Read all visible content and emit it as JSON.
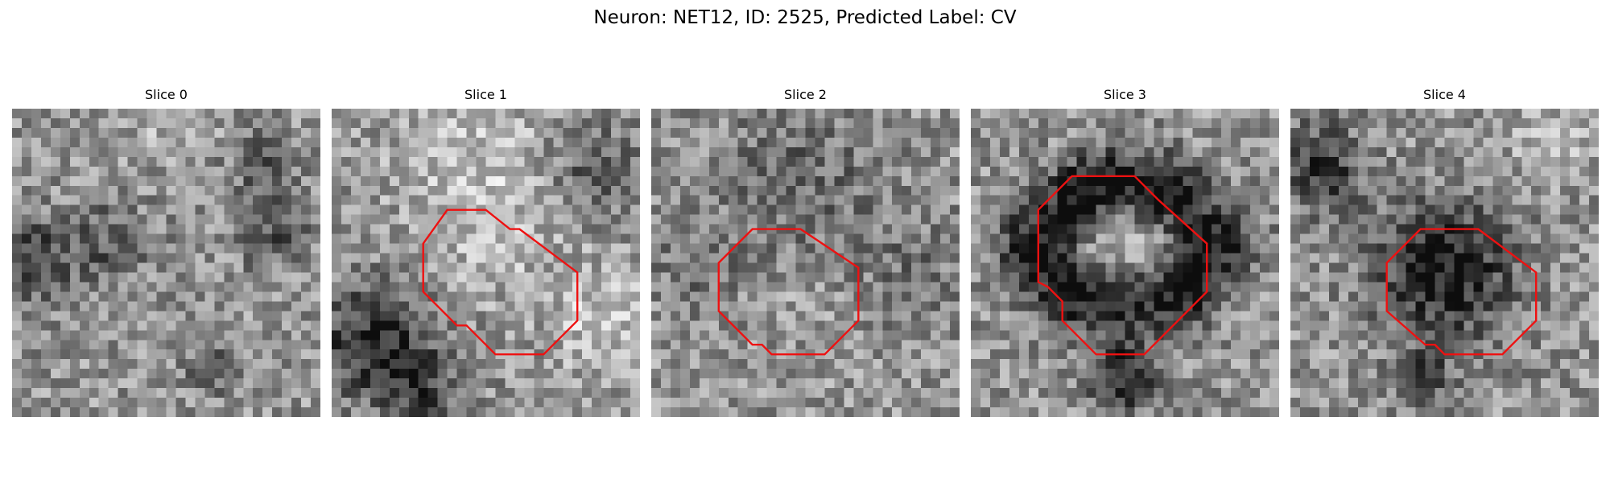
{
  "title": "Neuron: NET12, ID: 2525, Predicted Label: CV",
  "outline_color": "#ee1111",
  "grid_size": 32,
  "panels": [
    {
      "title": "Slice 0",
      "seed": 11,
      "blobs": [
        {
          "cx": 2,
          "cy": 16,
          "r": 3.0,
          "amp": -0.35
        },
        {
          "cx": 10,
          "cy": 14,
          "r": 3.0,
          "amp": -0.22
        },
        {
          "cx": 27,
          "cy": 13,
          "r": 2.5,
          "amp": -0.25
        },
        {
          "cx": 26,
          "cy": 6,
          "r": 2.5,
          "amp": -0.2
        },
        {
          "cx": 21,
          "cy": 27,
          "r": 2.0,
          "amp": -0.2
        },
        {
          "cx": 17,
          "cy": 2,
          "r": 3.0,
          "amp": 0.12
        }
      ],
      "outline": []
    },
    {
      "title": "Slice 1",
      "seed": 23,
      "blobs": [
        {
          "cx": 4,
          "cy": 24,
          "r": 4.0,
          "amp": -0.42
        },
        {
          "cx": 9,
          "cy": 29,
          "r": 3.0,
          "amp": -0.3
        },
        {
          "cx": 27,
          "cy": 6,
          "r": 3.0,
          "amp": -0.25
        },
        {
          "cx": 15,
          "cy": 6,
          "r": 6.0,
          "amp": 0.18
        },
        {
          "cx": 28,
          "cy": 22,
          "r": 4.0,
          "amp": 0.2
        },
        {
          "cx": 17,
          "cy": 15,
          "r": 4.0,
          "amp": 0.1
        }
      ],
      "outline": [
        [
          9.5,
          14
        ],
        [
          12,
          10.5
        ],
        [
          16,
          10.5
        ],
        [
          18.5,
          12.5
        ],
        [
          19.5,
          12.5
        ],
        [
          25.5,
          17
        ],
        [
          25.5,
          22
        ],
        [
          22,
          25.5
        ],
        [
          17,
          25.5
        ],
        [
          14,
          22.5
        ],
        [
          13,
          22.5
        ],
        [
          9.5,
          19
        ]
      ]
    },
    {
      "title": "Slice 2",
      "seed": 37,
      "blobs": [
        {
          "cx": 16,
          "cy": 8,
          "r": 6.0,
          "amp": -0.18
        },
        {
          "cx": 5,
          "cy": 17,
          "r": 4.0,
          "amp": -0.12
        },
        {
          "cx": 27,
          "cy": 17,
          "r": 4.0,
          "amp": -0.12
        },
        {
          "cx": 15,
          "cy": 18,
          "r": 5.0,
          "amp": 0.05
        }
      ],
      "outline": [
        [
          7,
          16
        ],
        [
          10.5,
          12.5
        ],
        [
          15.5,
          12.5
        ],
        [
          21.5,
          16.5
        ],
        [
          21.5,
          22
        ],
        [
          18,
          25.5
        ],
        [
          12.5,
          25.5
        ],
        [
          11.5,
          24.5
        ],
        [
          10.5,
          24.5
        ],
        [
          7,
          21
        ]
      ]
    },
    {
      "title": "Slice 3",
      "seed": 51,
      "blobs": [
        {
          "cx": 16,
          "cy": 8,
          "r": 3.0,
          "amp": -0.45
        },
        {
          "cx": 7,
          "cy": 14,
          "r": 3.0,
          "amp": -0.5
        },
        {
          "cx": 25,
          "cy": 14,
          "r": 3.0,
          "amp": -0.5
        },
        {
          "cx": 16,
          "cy": 20,
          "r": 3.0,
          "amp": -0.5
        },
        {
          "cx": 10,
          "cy": 19,
          "r": 2.5,
          "amp": -0.45
        },
        {
          "cx": 22,
          "cy": 19,
          "r": 2.5,
          "amp": -0.45
        },
        {
          "cx": 11,
          "cy": 9,
          "r": 2.5,
          "amp": -0.45
        },
        {
          "cx": 21,
          "cy": 9,
          "r": 2.5,
          "amp": -0.45
        },
        {
          "cx": 16,
          "cy": 14,
          "r": 4.0,
          "amp": 0.3
        },
        {
          "cx": 16,
          "cy": 28,
          "r": 2.5,
          "amp": -0.45
        }
      ],
      "outline": [
        [
          7,
          10.5
        ],
        [
          10.5,
          7
        ],
        [
          17,
          7
        ],
        [
          19.5,
          9.5
        ],
        [
          24.5,
          14
        ],
        [
          24.5,
          19
        ],
        [
          21,
          22.5
        ],
        [
          18,
          25.5
        ],
        [
          13,
          25.5
        ],
        [
          9.5,
          22
        ],
        [
          9.5,
          20
        ],
        [
          8,
          18.5
        ],
        [
          7,
          18
        ]
      ]
    },
    {
      "title": "Slice 4",
      "seed": 67,
      "blobs": [
        {
          "cx": 16,
          "cy": 17,
          "r": 5.0,
          "amp": -0.5
        },
        {
          "cx": 3,
          "cy": 6,
          "r": 3.0,
          "amp": -0.4
        },
        {
          "cx": 14,
          "cy": 28,
          "r": 2.0,
          "amp": -0.25
        },
        {
          "cx": 27,
          "cy": 3,
          "r": 3.0,
          "amp": 0.15
        }
      ],
      "outline": [
        [
          10,
          16
        ],
        [
          13.5,
          12.5
        ],
        [
          19.5,
          12.5
        ],
        [
          25.5,
          17
        ],
        [
          25.5,
          22
        ],
        [
          22,
          25.5
        ],
        [
          16,
          25.5
        ],
        [
          15,
          24.5
        ],
        [
          14,
          24.5
        ],
        [
          10,
          21
        ]
      ]
    }
  ]
}
